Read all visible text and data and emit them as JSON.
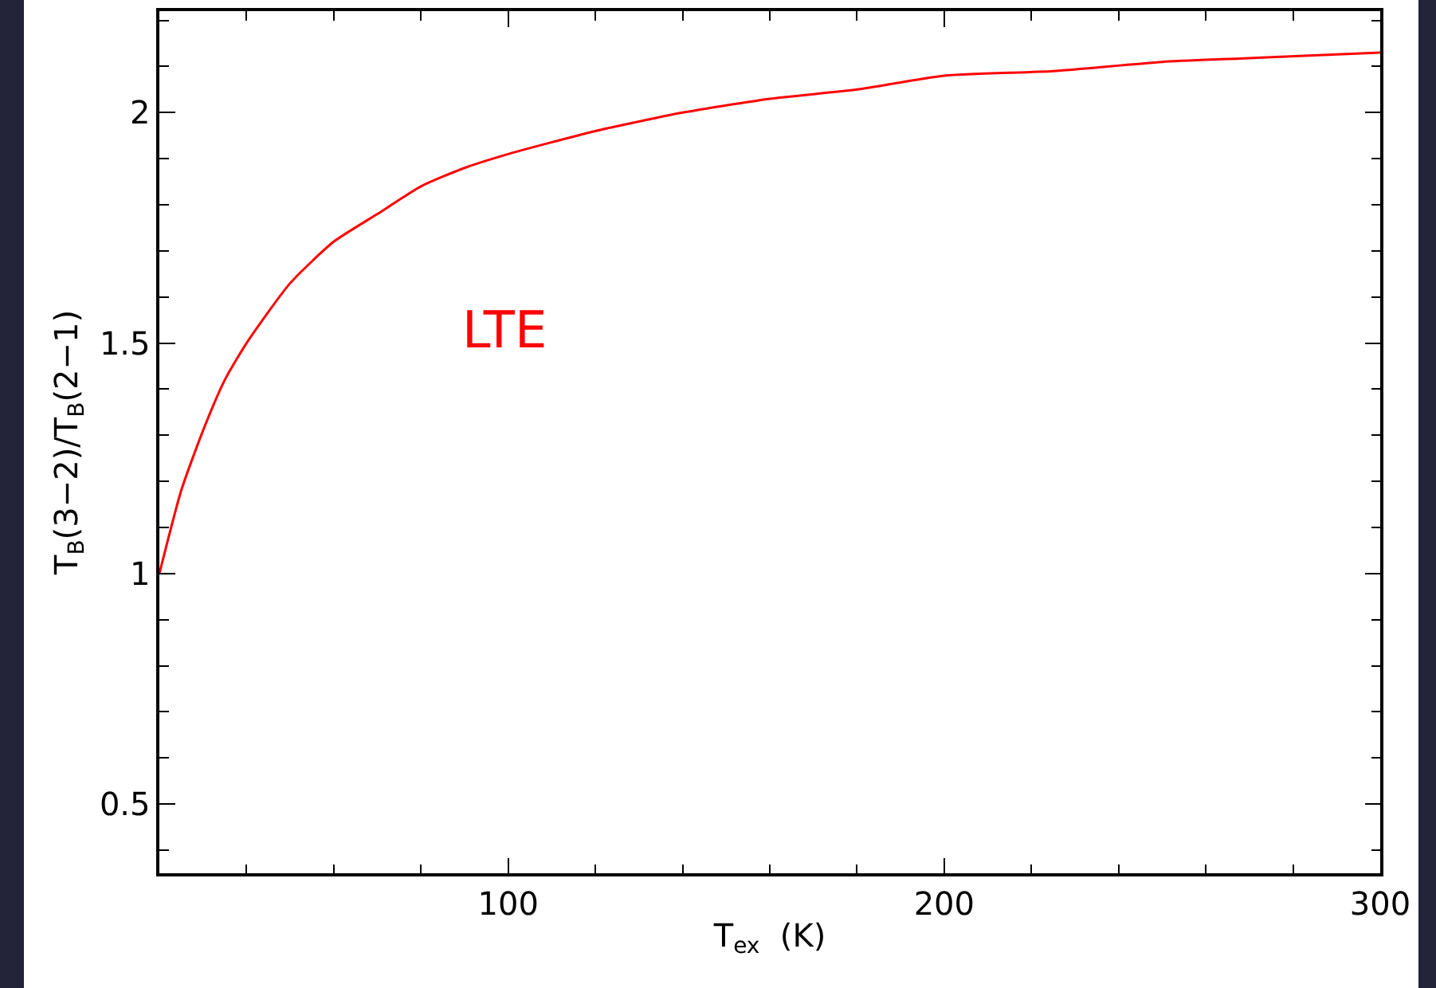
{
  "chart_data": {
    "type": "line",
    "xlabel": "T$_{ex}$  (K)",
    "ylabel": "T$_{B}$(3−2)/T$_{B}$(2−1)",
    "x": [
      20,
      25,
      30,
      35,
      40,
      50,
      60,
      70,
      80,
      90,
      100,
      120,
      140,
      160,
      180,
      200,
      225,
      250,
      275,
      300
    ],
    "series": [
      {
        "color": "#ff0000",
        "values": [
          1.0,
          1.18,
          1.31,
          1.42,
          1.5,
          1.63,
          1.72,
          1.78,
          1.84,
          1.88,
          1.91,
          1.96,
          2.0,
          2.03,
          2.05,
          2.08,
          2.09,
          2.11,
          2.12,
          2.13
        ]
      }
    ],
    "annotations": [
      "LTE"
    ],
    "xlim": [
      20,
      300
    ],
    "xticks": [
      100,
      200,
      300
    ],
    "ylim": [
      0.35,
      2.22
    ],
    "yticks": [
      0.5,
      1,
      1.5,
      2
    ],
    "grid": false,
    "marker": "none",
    "line_style": "solid"
  }
}
